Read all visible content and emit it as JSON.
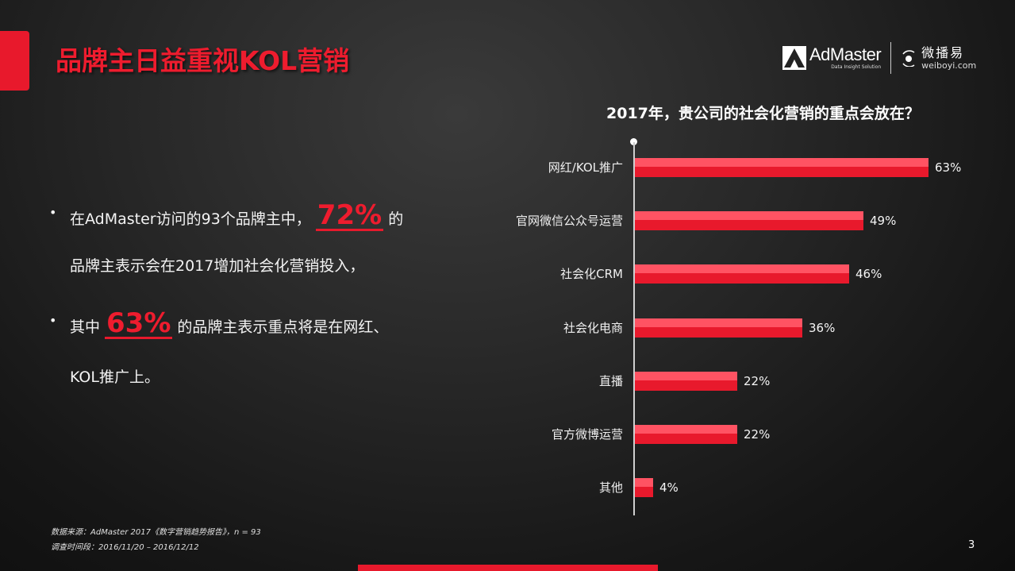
{
  "slide": {
    "title": "品牌主日益重视KOL营销",
    "page_number": "3",
    "accent_color": "#e8192c"
  },
  "logos": {
    "admaster": {
      "name": "AdMaster",
      "registered": "®",
      "tagline": "Data Insight Solution",
      "icon": "admaster-a-icon"
    },
    "weiboyi": {
      "name": "微播易",
      "url": "weiboyi.com",
      "icon": "weiboyi-signal-icon"
    }
  },
  "bullets": [
    {
      "line1_pre": "在AdMaster访问的93个品牌主中，",
      "highlight": "72%",
      "line1_post": "的",
      "line2": "品牌主表示会在2017增加社会化营销投入，"
    },
    {
      "line1_pre": "其中",
      "highlight": "63%",
      "line1_post": "的品牌主表示重点将是在网红、",
      "line2": "KOL推广上。"
    }
  ],
  "chart_data": {
    "type": "bar",
    "orientation": "horizontal",
    "title": "2017年，贵公司的社会化营销的重点会放在？",
    "categories": [
      "网红/KOL推广",
      "官网微信公众号运营",
      "社会化CRM",
      "社会化电商",
      "直播",
      "官方微博运营",
      "其他"
    ],
    "values": [
      63,
      49,
      46,
      36,
      22,
      22,
      4
    ],
    "labels": [
      "63%",
      "49%",
      "46%",
      "36%",
      "22%",
      "22%",
      "4%"
    ],
    "unit": "%",
    "xlim": [
      0,
      70
    ],
    "grid": false,
    "legend": "none",
    "colors": {
      "bar_top": "#ff5363",
      "bar_bottom": "#e8192c"
    }
  },
  "footnote": {
    "source": "数据来源：AdMaster 2017《数字营销趋势报告》，n = 93",
    "period": "调查时间段：2016/11/20 – 2016/12/12"
  }
}
